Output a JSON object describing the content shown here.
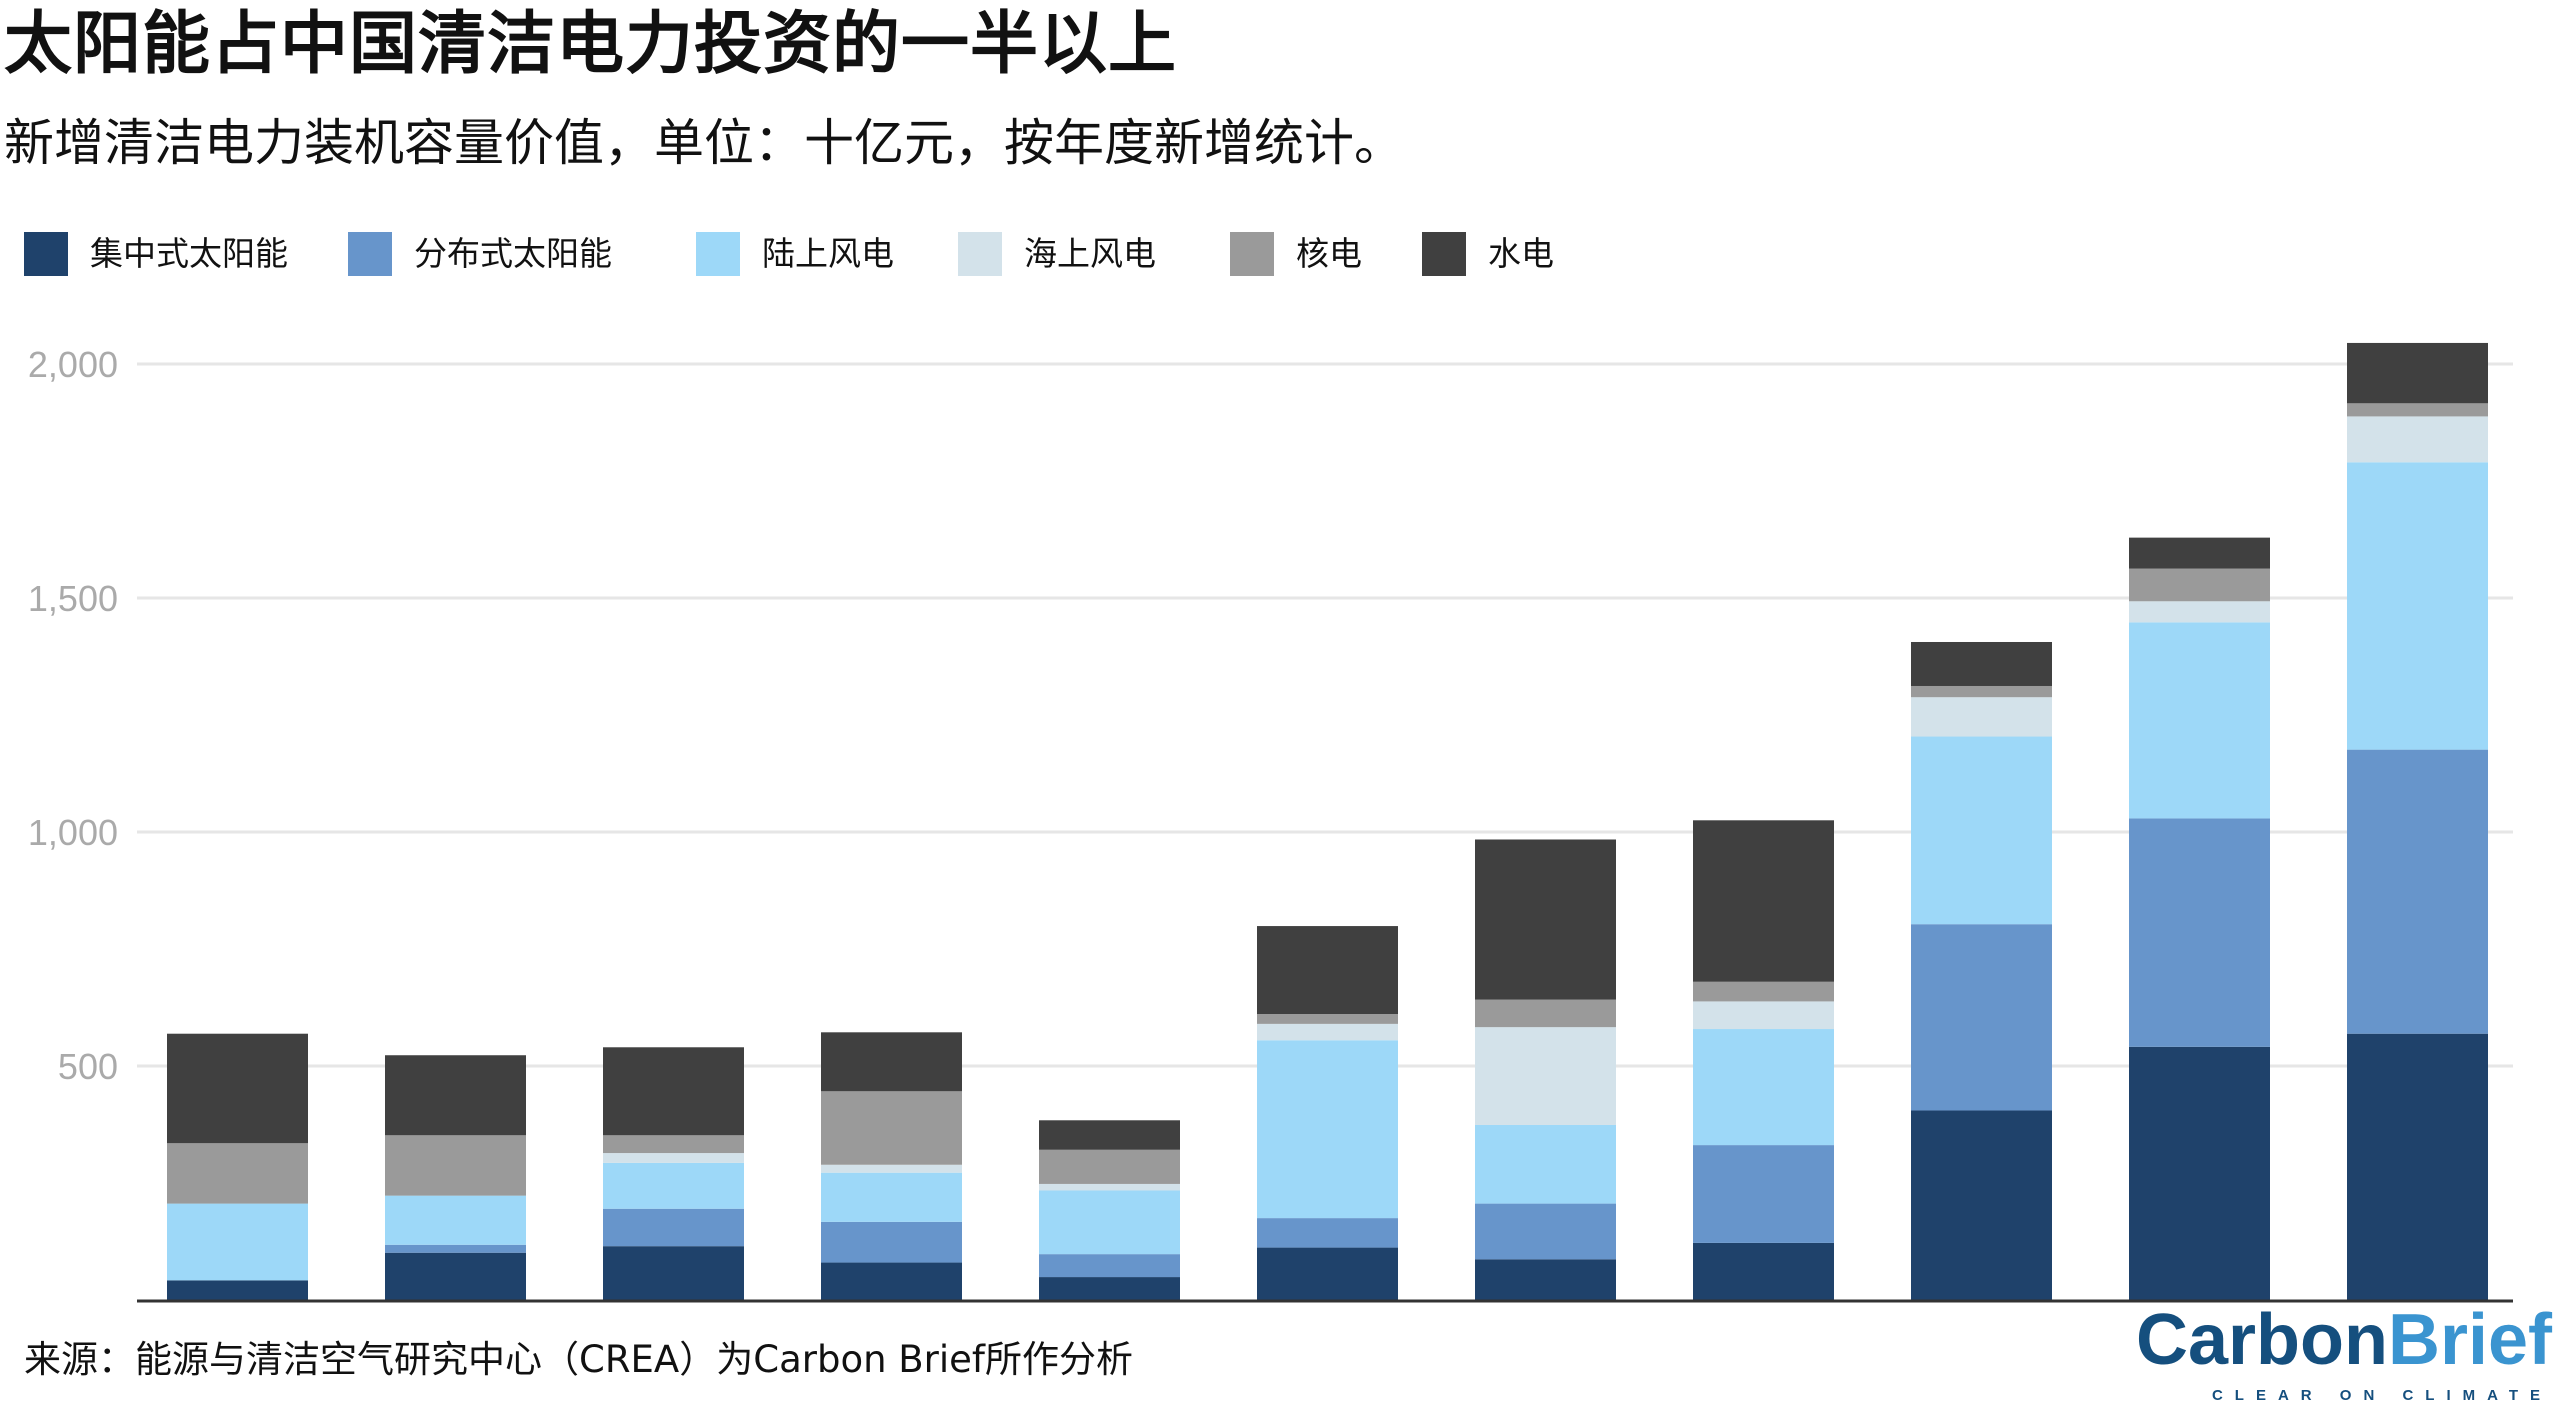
{
  "title": "太阳能占中国清洁电力投资的一半以上",
  "subtitle": "新增清洁电力装机容量价值，单位：十亿元，按年度新增统计。",
  "source": "来源：能源与清洁空气研究中心（CREA）为Carbon Brief所作分析",
  "logo": {
    "part1": "Carbon",
    "part2": "Brief",
    "tagline": "CLEAR ON CLIMATE"
  },
  "chart_data": {
    "type": "bar",
    "stacked": true,
    "categories": [
      "",
      "",
      "",
      "",
      "",
      "",
      "",
      "",
      "",
      "",
      ""
    ],
    "ylim": [
      0,
      2050
    ],
    "yticks": [
      500,
      1000,
      1500,
      2000
    ],
    "ytick_labels": [
      "500",
      "1,000",
      "1,500",
      "2,000"
    ],
    "grid": true,
    "legend_position": "top-left",
    "series": [
      {
        "name": "集中式太阳能",
        "color": "#1f426b",
        "values": [
          42,
          101,
          115,
          80,
          49,
          112,
          87,
          122,
          405,
          541,
          569
        ]
      },
      {
        "name": "分布式太阳能",
        "color": "#6795cb",
        "values": [
          0,
          17,
          80,
          87,
          49,
          63,
          119,
          209,
          398,
          488,
          607
        ]
      },
      {
        "name": "陆上风电",
        "color": "#9dd8f8",
        "values": [
          164,
          105,
          98,
          105,
          136,
          380,
          168,
          248,
          401,
          419,
          614
        ]
      },
      {
        "name": "海上风电",
        "color": "#d3e2ea",
        "values": [
          0,
          0,
          21,
          17,
          14,
          35,
          209,
          59,
          84,
          45,
          98
        ]
      },
      {
        "name": "核电",
        "color": "#9a9a9a",
        "values": [
          129,
          129,
          38,
          157,
          73,
          21,
          59,
          42,
          24,
          70,
          28
        ]
      },
      {
        "name": "水电",
        "color": "#404040",
        "values": [
          234,
          171,
          188,
          126,
          63,
          188,
          342,
          345,
          94,
          66,
          129
        ]
      }
    ]
  }
}
